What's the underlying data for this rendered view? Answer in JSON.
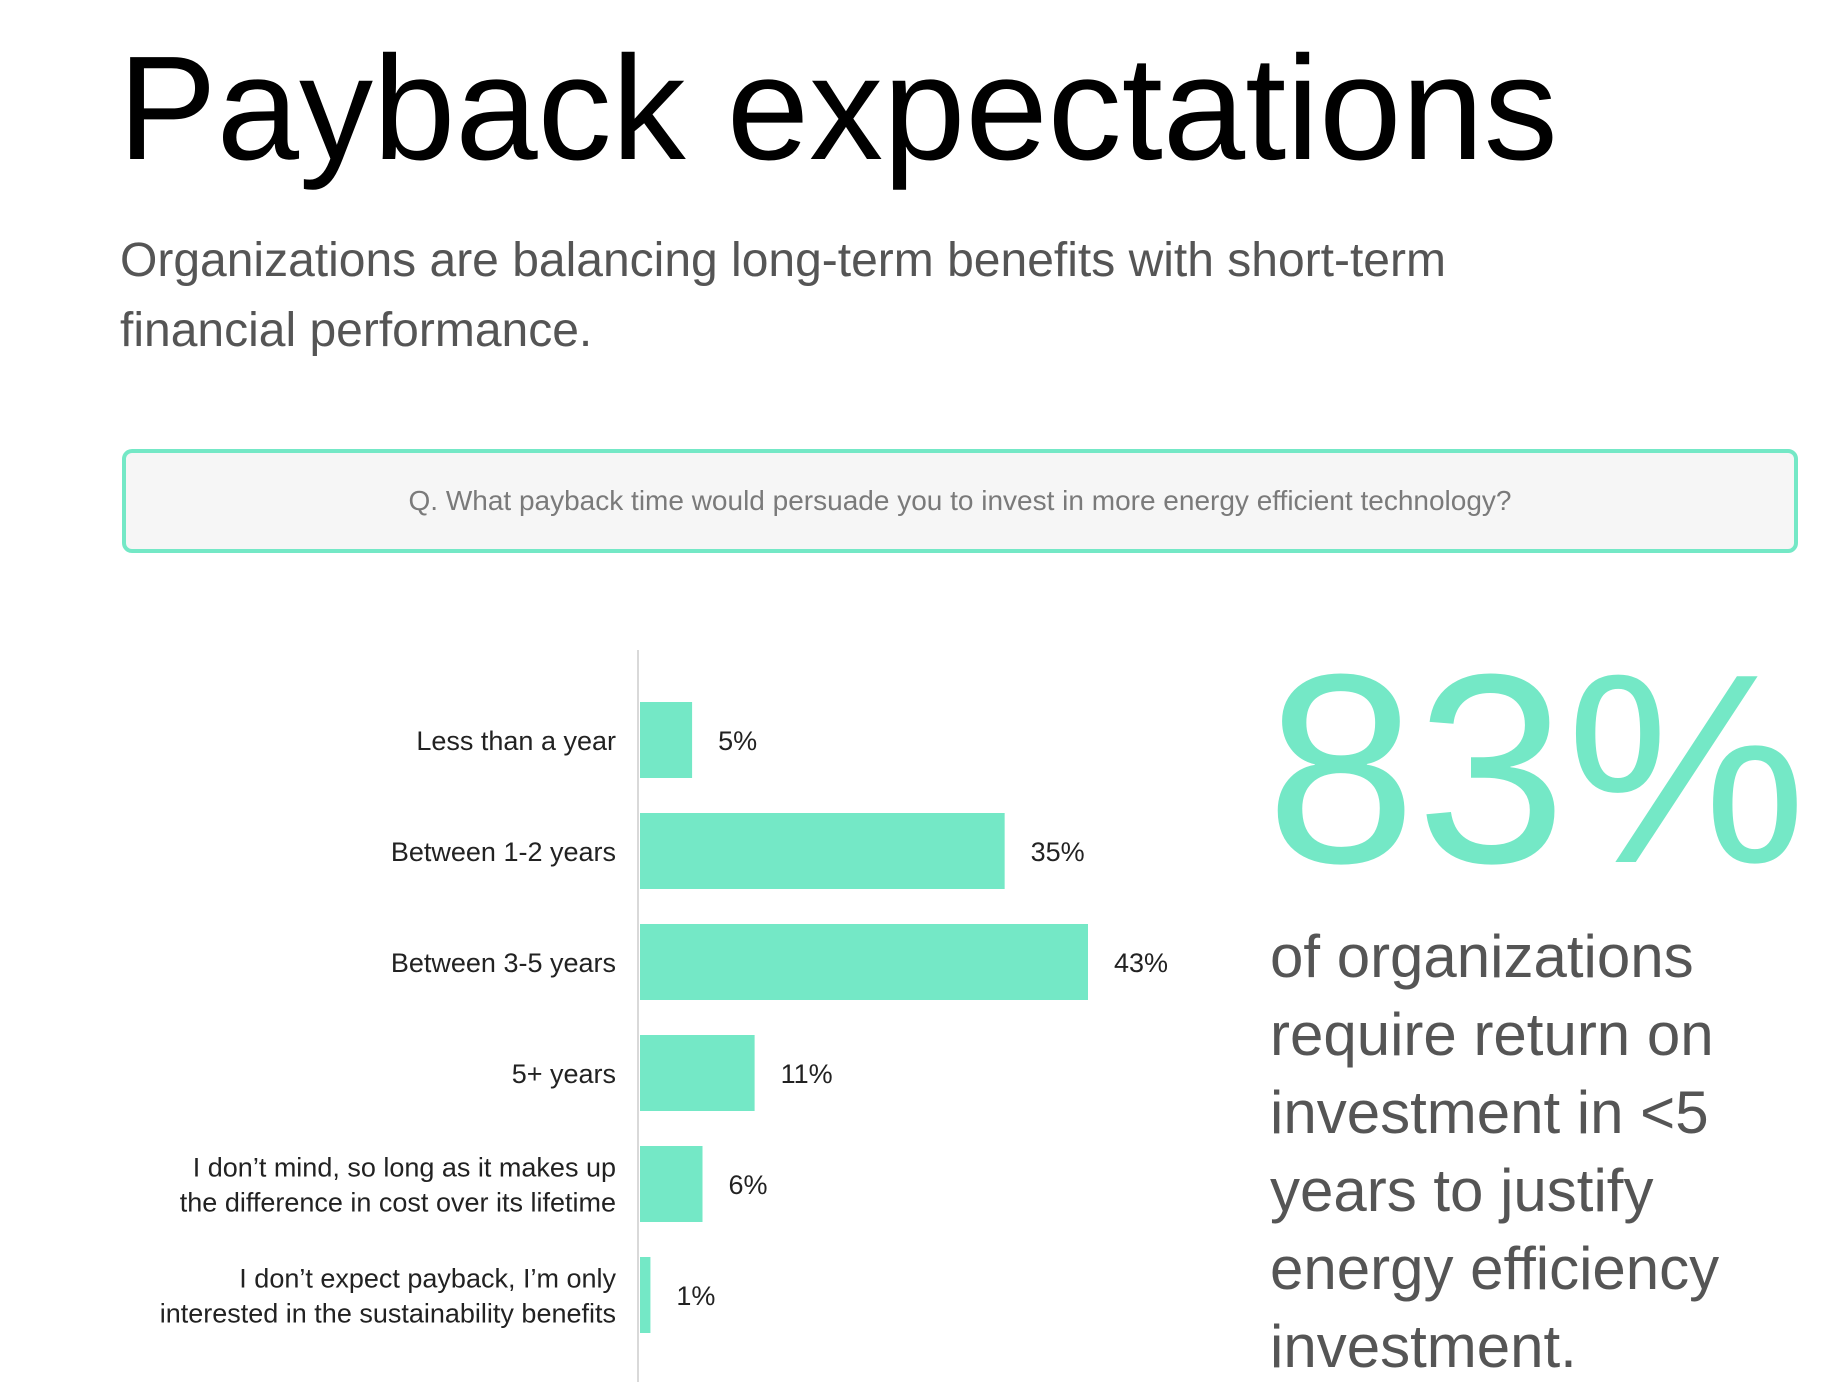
{
  "title": "Payback expectations",
  "subtitle": "Organizations are balancing long-term benefits with short-term financial performance.",
  "question": "Q. What payback time would persuade you to invest in more energy efficient technology?",
  "highlight": {
    "value": "83%",
    "caption": "of organizations require return on investment in <5 years to justify energy efficiency investment."
  },
  "colors": {
    "accent": "#74e8c6",
    "title": "#000000",
    "body_text": "#555555",
    "question_text": "#7a7a7a",
    "question_bg": "#f6f6f6",
    "label_text": "#222222",
    "axis": "#d9d9d9"
  },
  "chart_data": {
    "type": "bar",
    "orientation": "horizontal",
    "categories": [
      [
        "Less than a year"
      ],
      [
        "Between 1-2 years"
      ],
      [
        "Between 3-5 years"
      ],
      [
        "5+ years"
      ],
      [
        "I don’t mind, so long as it makes up",
        "the difference in cost over its lifetime"
      ],
      [
        "I don’t expect payback, I’m only",
        "interested in the sustainability benefits"
      ]
    ],
    "values": [
      5,
      35,
      43,
      11,
      6,
      1
    ],
    "value_labels": [
      "5%",
      "35%",
      "43%",
      "11%",
      "6%",
      "1%"
    ],
    "unit": "%",
    "xlim": [
      0,
      43
    ],
    "grid": false,
    "legend": "none"
  }
}
